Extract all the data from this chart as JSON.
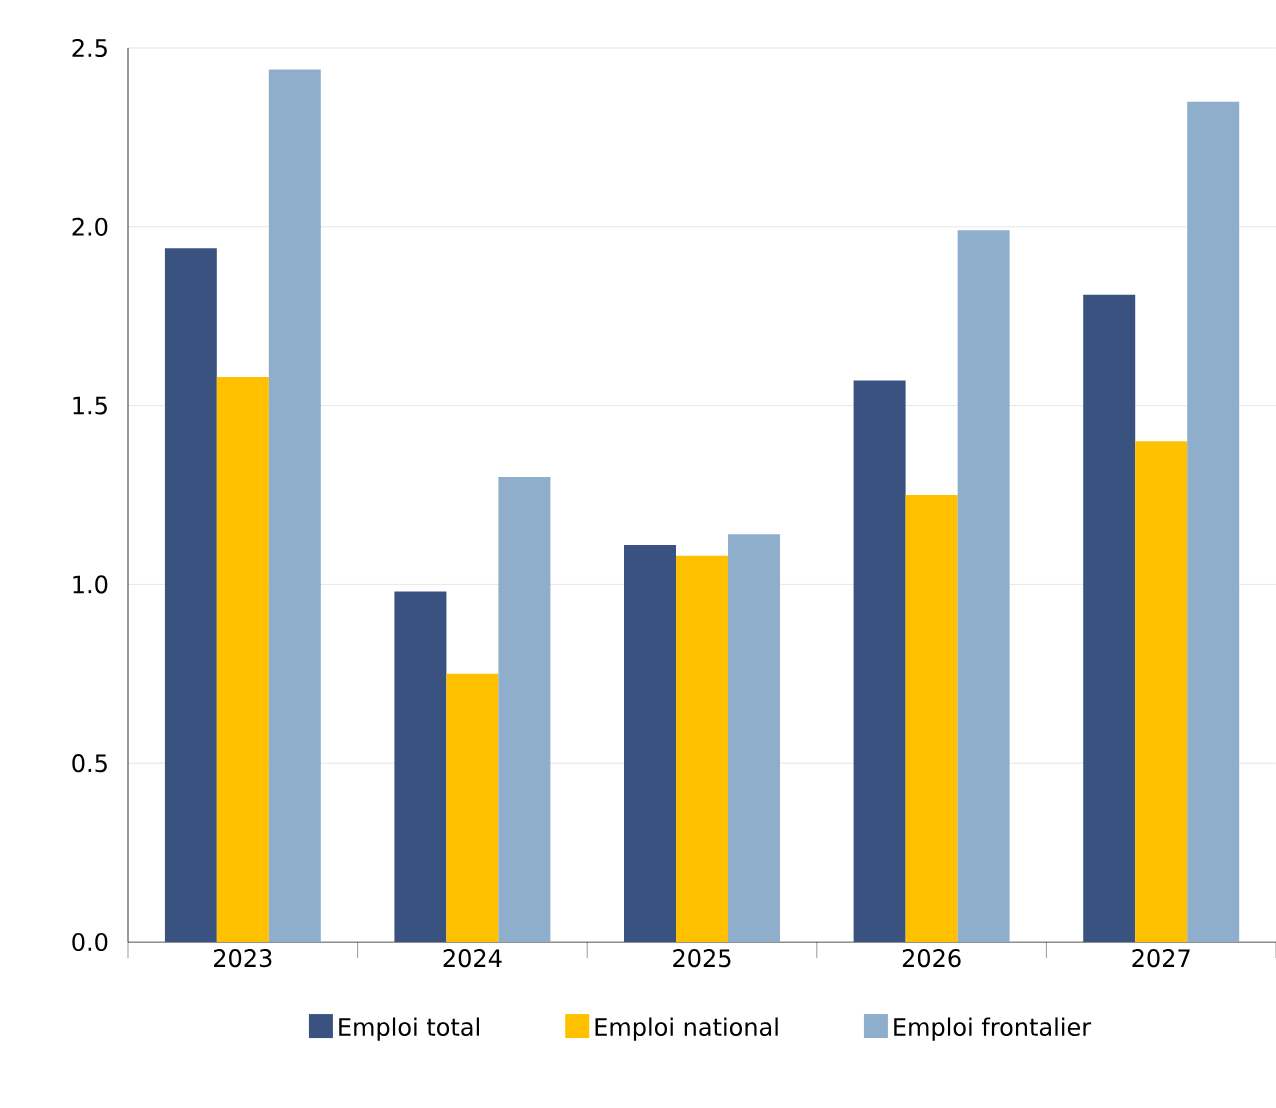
{
  "chart_data": {
    "type": "bar",
    "categories": [
      "2023",
      "2024",
      "2025",
      "2026",
      "2027"
    ],
    "series": [
      {
        "name": "Emploi total",
        "color": "#3a5280",
        "values": [
          1.94,
          0.98,
          1.11,
          1.57,
          1.81
        ]
      },
      {
        "name": "Emploi national",
        "color": "#ffc000",
        "values": [
          1.58,
          0.75,
          1.08,
          1.25,
          1.4
        ]
      },
      {
        "name": "Emploi frontalier",
        "color": "#8eaecb",
        "values": [
          2.44,
          1.3,
          1.14,
          1.99,
          2.35
        ]
      }
    ],
    "ylim": [
      0,
      2.5
    ],
    "yticks": [
      {
        "value": 0,
        "label": "0.0"
      },
      {
        "value": 0.5,
        "label": "0.5"
      },
      {
        "value": 1,
        "label": "1.0"
      },
      {
        "value": 1.5,
        "label": "1.5"
      },
      {
        "value": 2,
        "label": "2.0"
      },
      {
        "value": 2.5,
        "label": "2.5"
      }
    ],
    "grid": "y",
    "legend": "bottom"
  }
}
